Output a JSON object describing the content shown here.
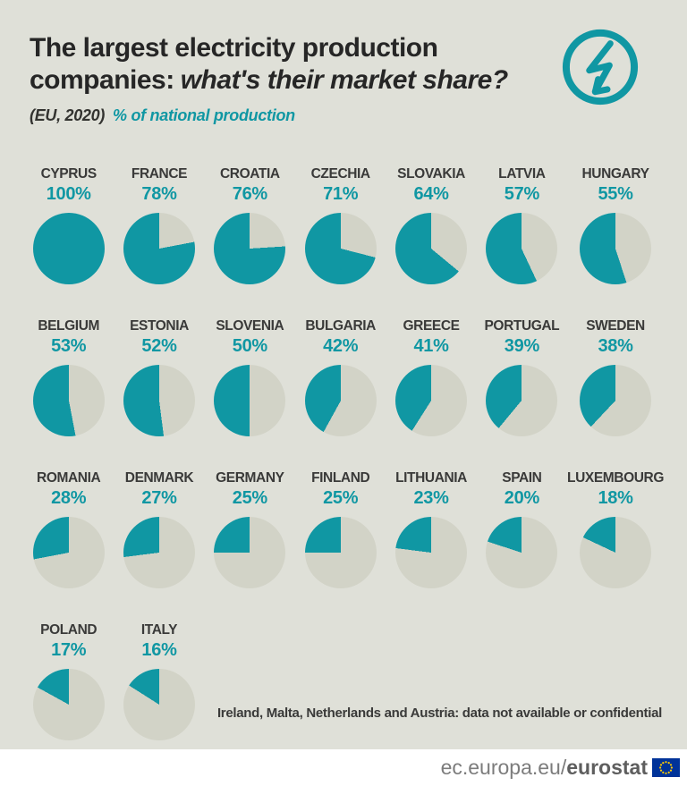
{
  "header": {
    "title_line1": "The largest electricity production",
    "title_line2_plain": "companies:",
    "title_line2_italic": "what's their market share?",
    "scope": "(EU, 2020)",
    "measure_label": "% of national production"
  },
  "colors": {
    "teal": "#1097a3",
    "background": "#dfe0d8",
    "pie_rest": "#d2d3c7",
    "title_text": "#262626",
    "label_text": "#3a3a39",
    "footer_text": "#7c7c7c",
    "flag_blue": "#003399",
    "flag_stars": "#ffcc00"
  },
  "chart_data": {
    "type": "pie",
    "title": "The largest electricity production companies: what's their market share?",
    "subtitle": "(EU, 2020) % of national production",
    "unit": "% of national production",
    "legend_position": "none",
    "items": [
      {
        "country": "CYPRUS",
        "value": 100
      },
      {
        "country": "FRANCE",
        "value": 78
      },
      {
        "country": "CROATIA",
        "value": 76
      },
      {
        "country": "CZECHIA",
        "value": 71
      },
      {
        "country": "SLOVAKIA",
        "value": 64
      },
      {
        "country": "LATVIA",
        "value": 57
      },
      {
        "country": "HUNGARY",
        "value": 55
      },
      {
        "country": "BELGIUM",
        "value": 53
      },
      {
        "country": "ESTONIA",
        "value": 52
      },
      {
        "country": "SLOVENIA",
        "value": 50
      },
      {
        "country": "BULGARIA",
        "value": 42
      },
      {
        "country": "GREECE",
        "value": 41
      },
      {
        "country": "PORTUGAL",
        "value": 39
      },
      {
        "country": "SWEDEN",
        "value": 38
      },
      {
        "country": "ROMANIA",
        "value": 28
      },
      {
        "country": "DENMARK",
        "value": 27
      },
      {
        "country": "GERMANY",
        "value": 25
      },
      {
        "country": "FINLAND",
        "value": 25
      },
      {
        "country": "LITHUANIA",
        "value": 23
      },
      {
        "country": "SPAIN",
        "value": 20
      },
      {
        "country": "LUXEMBOURG",
        "value": 18
      },
      {
        "country": "POLAND",
        "value": 17
      },
      {
        "country": "ITALY",
        "value": 16
      }
    ],
    "note": "Ireland, Malta, Netherlands and Austria: data not available or confidential"
  },
  "footnote": "Ireland, Malta, Netherlands and Austria: data not available or confidential",
  "footer": {
    "url_prefix": "ec.europa.eu/",
    "url_bold": "eurostat"
  }
}
